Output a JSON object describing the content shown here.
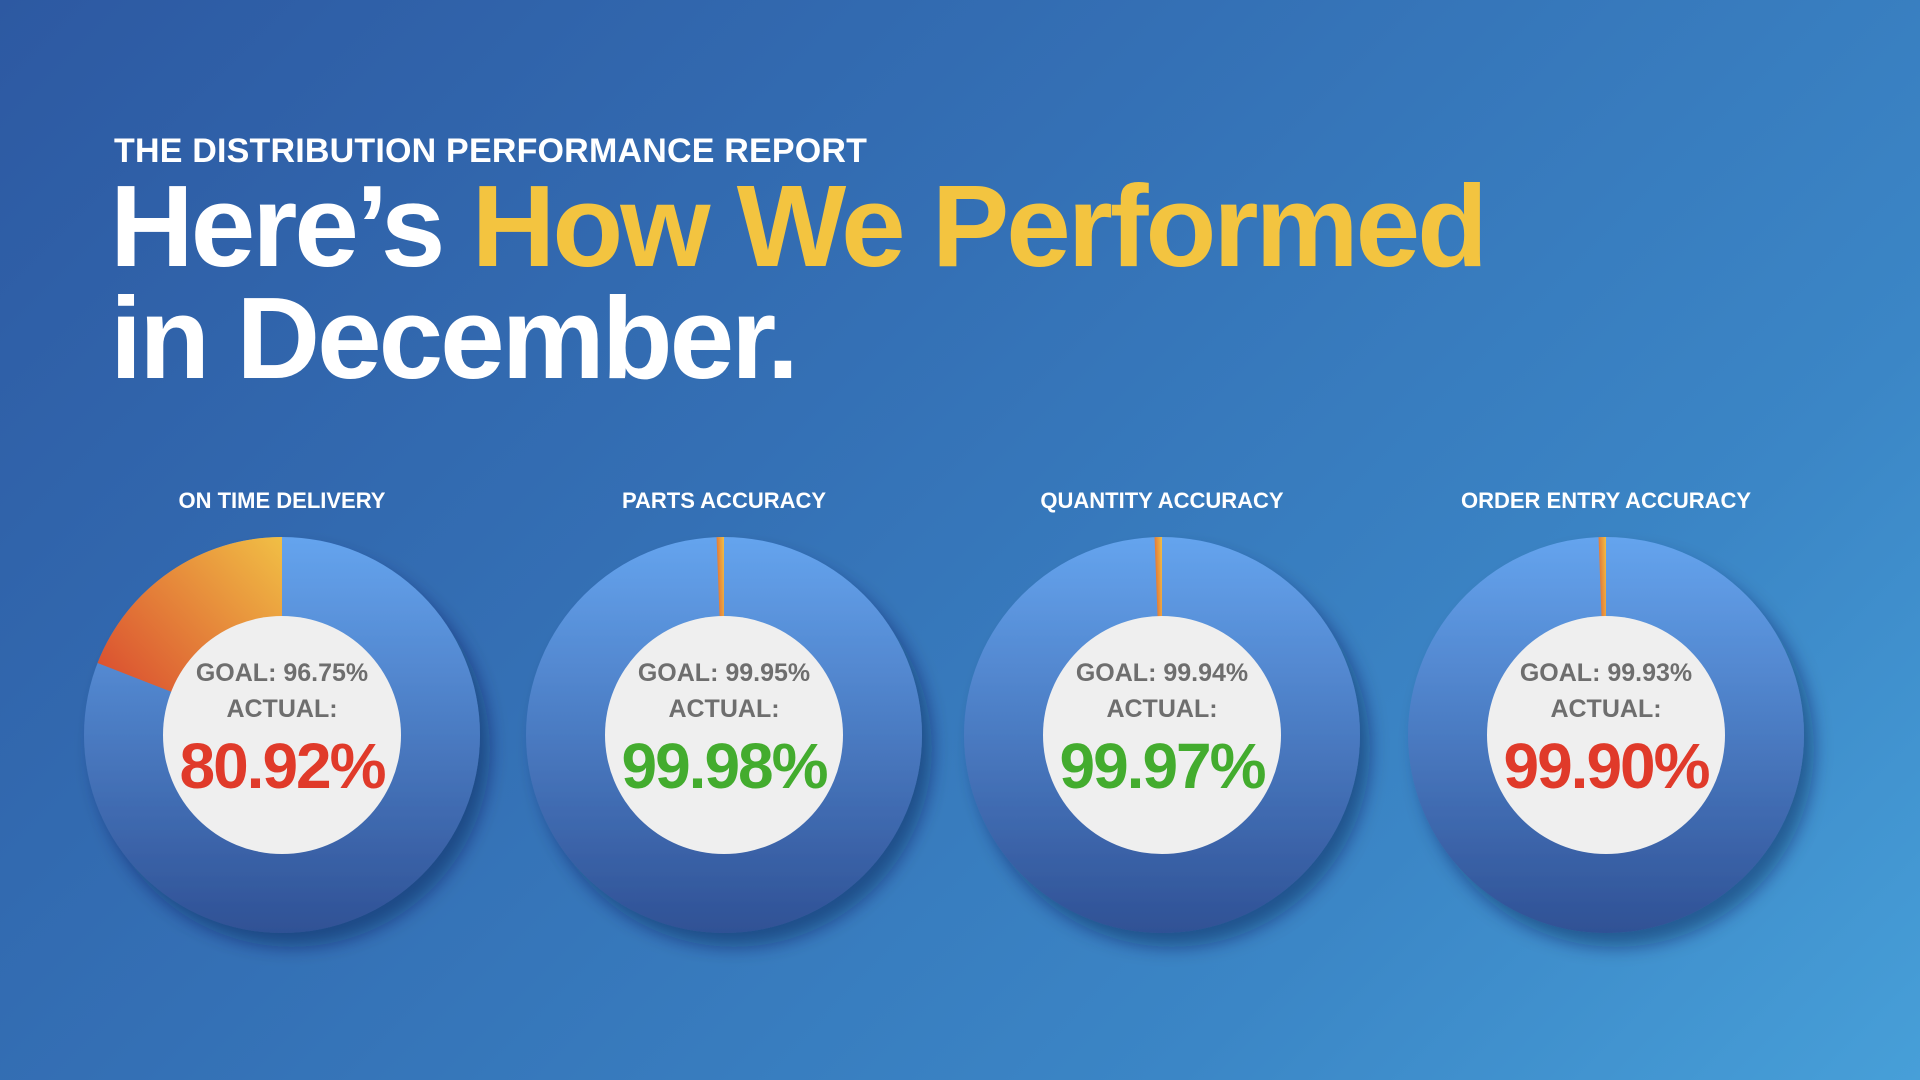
{
  "header": {
    "kicker": "THE DISTRIBUTION PERFORMANCE REPORT",
    "title_part1": "Here’s ",
    "title_accent": "How We Performed",
    "title_line2": "in December."
  },
  "colors": {
    "accent": "#f3c440",
    "miss": "#e03a2a",
    "hit": "#43ac2e",
    "donut_top": "#65a4ee",
    "donut_bottom": "#2f5195",
    "slice_top": "#f1bf45",
    "slice_bottom": "#d63b2c",
    "center": "#efefef"
  },
  "chart_data": [
    {
      "type": "pie",
      "title": "ON TIME DELIVERY",
      "goal_label": "GOAL: 96.75%",
      "actual_label": "ACTUAL:",
      "actual_value": "80.92%",
      "actual": 80.92,
      "goal": 96.75,
      "status": "miss"
    },
    {
      "type": "pie",
      "title": "PARTS ACCURACY",
      "goal_label": "GOAL: 99.95%",
      "actual_label": "ACTUAL:",
      "actual_value": "99.98%",
      "actual": 99.98,
      "goal": 99.95,
      "status": "hit"
    },
    {
      "type": "pie",
      "title": "QUANTITY ACCURACY",
      "goal_label": "GOAL: 99.94%",
      "actual_label": "ACTUAL:",
      "actual_value": "99.97%",
      "actual": 99.97,
      "goal": 99.94,
      "status": "hit"
    },
    {
      "type": "pie",
      "title": "ORDER ENTRY ACCURACY",
      "goal_label": "GOAL: 99.93%",
      "actual_label": "ACTUAL:",
      "actual_value": "99.90%",
      "actual": 99.9,
      "goal": 99.93,
      "status": "miss"
    }
  ]
}
